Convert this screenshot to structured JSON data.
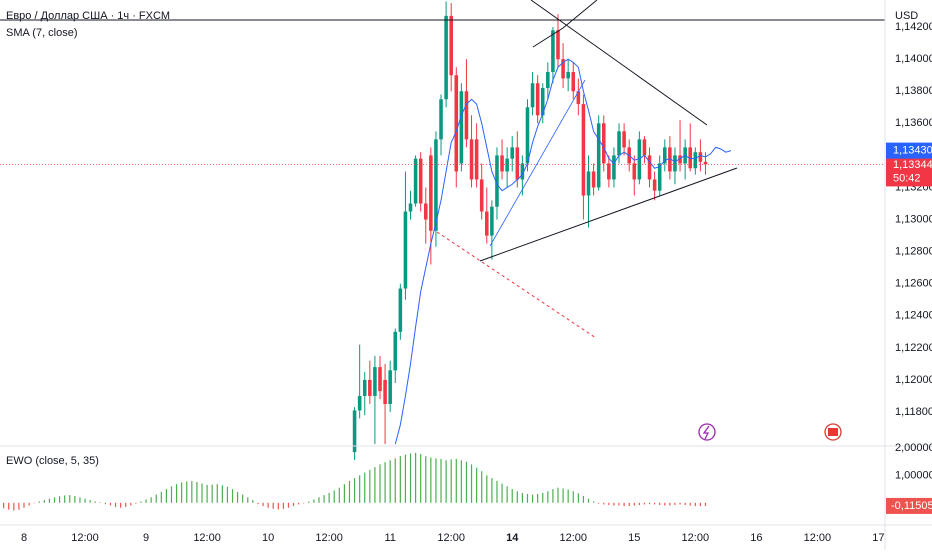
{
  "chart_data": [
    {
      "type": "candlestick",
      "title": "Евро / Доллар США · 1ч · FXCM",
      "indicator": "SMA (7, close)",
      "currency": "USD",
      "up_color": "#089981",
      "down_color": "#f23645",
      "grid": true,
      "x": [
        65,
        66,
        67,
        68,
        69,
        70,
        71,
        72,
        73,
        74,
        75,
        76,
        77,
        78,
        79,
        80,
        81,
        82,
        83,
        84,
        85,
        86,
        87,
        88,
        89,
        90,
        91,
        92,
        93,
        94,
        95,
        96,
        97,
        98,
        99,
        100,
        101,
        102,
        103,
        104,
        105,
        106,
        107,
        108,
        109,
        110,
        111,
        112,
        113,
        114,
        115,
        116,
        117,
        118,
        119,
        120,
        121,
        122,
        123,
        124,
        125,
        126,
        127,
        128,
        129,
        130,
        131,
        132,
        133,
        134
      ],
      "open": [
        1.1155,
        1.1181,
        1.119,
        1.12,
        1.119,
        1.1208,
        1.12,
        1.1185,
        1.1206,
        1.123,
        1.1257,
        1.1305,
        1.131,
        1.1338,
        1.131,
        1.134,
        1.1293,
        1.135,
        1.1375,
        1.1427,
        1.139,
        1.1335,
        1.138,
        1.135,
        1.135,
        1.1325,
        1.1305,
        1.129,
        1.1308,
        1.134,
        1.133,
        1.1338,
        1.1345,
        1.1325,
        1.1335,
        1.137,
        1.1385,
        1.1365,
        1.1382,
        1.1392,
        1.1418,
        1.14,
        1.1388,
        1.1392,
        1.138,
        1.1372,
        1.1315,
        1.133,
        1.132,
        1.136,
        1.1335,
        1.1325,
        1.134,
        1.1355,
        1.1345,
        1.1335,
        1.1325,
        1.135,
        1.134,
        1.1325,
        1.1318,
        1.1335,
        1.1345,
        1.133,
        1.134,
        1.1335,
        1.1345,
        1.1332,
        1.1342,
        1.1336
      ],
      "high": [
        1.1183,
        1.1222,
        1.1205,
        1.1212,
        1.1215,
        1.1215,
        1.121,
        1.1212,
        1.1232,
        1.126,
        1.133,
        1.1318,
        1.134,
        1.1342,
        1.132,
        1.1345,
        1.1355,
        1.1378,
        1.1436,
        1.1435,
        1.1395,
        1.1385,
        1.14,
        1.1365,
        1.136,
        1.1335,
        1.132,
        1.1312,
        1.1345,
        1.135,
        1.1345,
        1.1352,
        1.1355,
        1.134,
        1.1375,
        1.1392,
        1.139,
        1.1385,
        1.1398,
        1.142,
        1.1428,
        1.141,
        1.14,
        1.1398,
        1.1388,
        1.1378,
        1.134,
        1.1335,
        1.1365,
        1.1365,
        1.134,
        1.1345,
        1.136,
        1.136,
        1.135,
        1.134,
        1.1355,
        1.1352,
        1.1345,
        1.133,
        1.134,
        1.135,
        1.1352,
        1.1345,
        1.1362,
        1.135,
        1.136,
        1.1345,
        1.135,
        1.1342
      ],
      "low": [
        1.115,
        1.1176,
        1.1178,
        1.1185,
        1.116,
        1.1188,
        1.116,
        1.118,
        1.1198,
        1.1225,
        1.125,
        1.13,
        1.1308,
        1.1305,
        1.1285,
        1.1272,
        1.1283,
        1.134,
        1.137,
        1.138,
        1.132,
        1.133,
        1.1345,
        1.132,
        1.132,
        1.13,
        1.1285,
        1.1275,
        1.13,
        1.1325,
        1.132,
        1.133,
        1.132,
        1.1315,
        1.133,
        1.1365,
        1.136,
        1.136,
        1.1375,
        1.1385,
        1.1395,
        1.1382,
        1.138,
        1.1375,
        1.1365,
        1.13,
        1.1295,
        1.1315,
        1.1318,
        1.133,
        1.132,
        1.132,
        1.1335,
        1.134,
        1.133,
        1.1315,
        1.1322,
        1.1335,
        1.132,
        1.1312,
        1.1315,
        1.133,
        1.1325,
        1.1322,
        1.133,
        1.1325,
        1.133,
        1.1328,
        1.133,
        1.1328
      ],
      "close": [
        1.1181,
        1.119,
        1.12,
        1.119,
        1.1208,
        1.1193,
        1.1185,
        1.1206,
        1.123,
        1.1257,
        1.1305,
        1.131,
        1.1338,
        1.131,
        1.13,
        1.1293,
        1.135,
        1.1375,
        1.1427,
        1.139,
        1.133,
        1.138,
        1.135,
        1.1325,
        1.1325,
        1.1305,
        1.129,
        1.1308,
        1.134,
        1.133,
        1.1338,
        1.1345,
        1.1325,
        1.1335,
        1.137,
        1.1385,
        1.1365,
        1.1382,
        1.1392,
        1.1418,
        1.14,
        1.1388,
        1.1392,
        1.138,
        1.1372,
        1.1315,
        1.133,
        1.132,
        1.136,
        1.1335,
        1.1325,
        1.134,
        1.1355,
        1.1345,
        1.1335,
        1.1325,
        1.135,
        1.134,
        1.1325,
        1.1318,
        1.1335,
        1.1345,
        1.133,
        1.134,
        1.1335,
        1.1345,
        1.1332,
        1.1342,
        1.1336,
        1.13344
      ],
      "sma": {
        "color": "#2962ff",
        "x": [
          73,
          74,
          75,
          76,
          77,
          78,
          79,
          80,
          81,
          82,
          83,
          84,
          85,
          86,
          87,
          88,
          89,
          90,
          91,
          92,
          93,
          94,
          95,
          96,
          97,
          98,
          99,
          100,
          101,
          102,
          103,
          104,
          105,
          106,
          107,
          108,
          109,
          110,
          111,
          112,
          113,
          114,
          115,
          116,
          117,
          118,
          119,
          120,
          121,
          122,
          123,
          124,
          125,
          126,
          127,
          128,
          129,
          130,
          131,
          132,
          133,
          134,
          135,
          136,
          137,
          138,
          139
        ],
        "values": [
          1.116,
          1.1172,
          1.119,
          1.121,
          1.1233,
          1.1255,
          1.127,
          1.1285,
          1.1298,
          1.1312,
          1.133,
          1.1348,
          1.1355,
          1.1365,
          1.1372,
          1.1375,
          1.1372,
          1.136,
          1.1345,
          1.133,
          1.1322,
          1.1318,
          1.132,
          1.1322,
          1.1325,
          1.1328,
          1.1335,
          1.1348,
          1.1358,
          1.1366,
          1.1375,
          1.1387,
          1.1395,
          1.1398,
          1.14,
          1.1398,
          1.1395,
          1.138,
          1.1368,
          1.1355,
          1.135,
          1.1345,
          1.1338,
          1.1335,
          1.134,
          1.1342,
          1.134,
          1.1337,
          1.1338,
          1.134,
          1.1336,
          1.1332,
          1.1333,
          1.1337,
          1.1338,
          1.1336,
          1.1338,
          1.134,
          1.1338,
          1.1338,
          1.134,
          1.1339,
          1.1341,
          1.1345,
          1.1344,
          1.1342,
          1.1343
        ]
      },
      "last_price": {
        "value": 1.13344,
        "label": "1,13344"
      },
      "countdown": "50:42",
      "sma_last": {
        "value": 1.1343,
        "label": "1,13430"
      },
      "xlim": [
        -4.72,
        169.3
      ],
      "ylim": [
        1.11588,
        1.14369
      ],
      "xticks": [
        {
          "value": 0,
          "label": "8"
        },
        {
          "value": 12,
          "label": "12:00"
        },
        {
          "value": 24,
          "label": "9"
        },
        {
          "value": 36,
          "label": "12:00"
        },
        {
          "value": 48,
          "label": "10"
        },
        {
          "value": 60,
          "label": "12:00"
        },
        {
          "value": 72,
          "label": "11"
        },
        {
          "value": 84,
          "label": "12:00"
        },
        {
          "value": 96,
          "label": "14"
        },
        {
          "value": 108,
          "label": "12:00"
        },
        {
          "value": 120,
          "label": "15"
        },
        {
          "value": 132,
          "label": "12:00"
        },
        {
          "value": 144,
          "label": "16"
        },
        {
          "value": 156,
          "label": "12:00"
        },
        {
          "value": 168,
          "label": "17"
        }
      ],
      "yticks": [
        {
          "value": 1.118,
          "label": "1,11800"
        },
        {
          "value": 1.12,
          "label": "1,12000"
        },
        {
          "value": 1.122,
          "label": "1,12200"
        },
        {
          "value": 1.124,
          "label": "1,12400"
        },
        {
          "value": 1.126,
          "label": "1,12600"
        },
        {
          "value": 1.128,
          "label": "1,12800"
        },
        {
          "value": 1.13,
          "label": "1,13000"
        },
        {
          "value": 1.132,
          "label": "1,13200"
        },
        {
          "value": 1.136,
          "label": "1,13600"
        },
        {
          "value": 1.138,
          "label": "1,13800"
        },
        {
          "value": 1.14,
          "label": "1,14000"
        },
        {
          "value": 1.142,
          "label": "1,14200"
        }
      ]
    },
    {
      "type": "histogram",
      "title": "EWO (close, 5, 35)",
      "up_color": "#4caf50",
      "down_color": "#ef5350",
      "x": [
        -4,
        -3,
        -2,
        -1,
        0,
        1,
        2,
        3,
        4,
        5,
        6,
        7,
        8,
        9,
        10,
        11,
        12,
        13,
        14,
        15,
        16,
        17,
        18,
        19,
        20,
        21,
        22,
        23,
        24,
        25,
        26,
        27,
        28,
        29,
        30,
        31,
        32,
        33,
        34,
        35,
        36,
        37,
        38,
        39,
        40,
        41,
        42,
        43,
        44,
        45,
        46,
        47,
        48,
        49,
        50,
        51,
        52,
        53,
        54,
        55,
        56,
        57,
        58,
        59,
        60,
        61,
        62,
        63,
        64,
        65,
        66,
        67,
        68,
        69,
        70,
        71,
        72,
        73,
        74,
        75,
        76,
        77,
        78,
        79,
        80,
        81,
        82,
        83,
        84,
        85,
        86,
        87,
        88,
        89,
        90,
        91,
        92,
        93,
        94,
        95,
        96,
        97,
        98,
        99,
        100,
        101,
        102,
        103,
        104,
        105,
        106,
        107,
        108,
        109,
        110,
        111,
        112,
        113,
        114,
        115,
        116,
        117,
        118,
        119,
        120,
        121,
        122,
        123,
        124,
        125,
        126,
        127,
        128,
        129,
        130,
        131,
        132,
        133,
        134
      ],
      "values": [
        -0.2,
        -0.25,
        -0.28,
        -0.25,
        -0.18,
        -0.1,
        -0.02,
        0.05,
        0.1,
        0.15,
        0.2,
        0.24,
        0.27,
        0.28,
        0.25,
        0.2,
        0.15,
        0.1,
        0.05,
        0.02,
        -0.05,
        -0.1,
        -0.15,
        -0.18,
        -0.15,
        -0.1,
        -0.03,
        0.05,
        0.12,
        0.2,
        0.3,
        0.4,
        0.5,
        0.6,
        0.68,
        0.74,
        0.78,
        0.8,
        0.76,
        0.7,
        0.65,
        0.66,
        0.68,
        0.64,
        0.58,
        0.5,
        0.4,
        0.3,
        0.2,
        0.1,
        -0.05,
        -0.12,
        -0.18,
        -0.22,
        -0.24,
        -0.22,
        -0.18,
        -0.12,
        -0.06,
        -0.02,
        0.05,
        0.12,
        0.2,
        0.28,
        0.36,
        0.45,
        0.55,
        0.68,
        0.8,
        0.9,
        1.0,
        1.1,
        1.2,
        1.3,
        1.4,
        1.48,
        1.55,
        1.62,
        1.7,
        1.75,
        1.8,
        1.82,
        1.78,
        1.7,
        1.65,
        1.62,
        1.6,
        1.55,
        1.58,
        1.6,
        1.55,
        1.5,
        1.4,
        1.28,
        1.15,
        1.0,
        0.9,
        0.8,
        0.7,
        0.6,
        0.5,
        0.42,
        0.36,
        0.32,
        0.3,
        0.32,
        0.36,
        0.42,
        0.5,
        0.55,
        0.52,
        0.48,
        0.42,
        0.35,
        0.25,
        0.15,
        0.05,
        -0.03,
        -0.06,
        -0.08,
        -0.1,
        -0.1,
        -0.12,
        -0.12,
        -0.1,
        -0.08,
        -0.06,
        -0.05,
        -0.06,
        -0.08,
        -0.1,
        -0.1,
        -0.08,
        -0.06,
        -0.08,
        -0.1,
        -0.12,
        -0.12,
        -0.11505
      ],
      "last_value": {
        "value": -0.11505,
        "label": "-0,11505"
      },
      "ylim": [
        -0.81,
        2.07
      ],
      "yticks": [
        {
          "value": 1,
          "label": "1,00000"
        },
        {
          "value": 2,
          "label": "2,00000"
        }
      ]
    }
  ]
}
